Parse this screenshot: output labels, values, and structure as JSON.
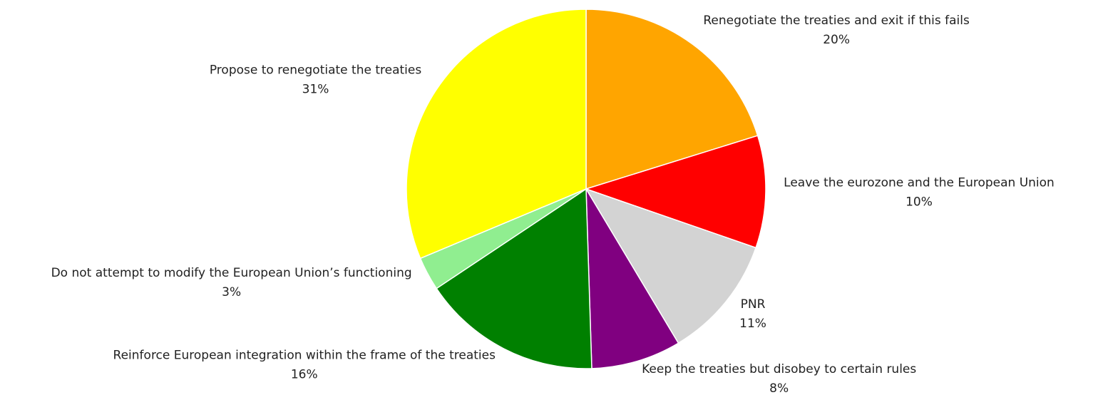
{
  "chart_data": {
    "type": "pie",
    "categories": [
      "Renegotiate the treaties and exit if this fails",
      "Leave the eurozone and the European Union",
      "PNR",
      "Keep the treaties but disobey to certain rules",
      "Reinforce European integration within the frame of the treaties",
      "Do not attempt to modify the European Union’s functioning",
      "Propose to renegotiate the treaties"
    ],
    "values": [
      20,
      10,
      11,
      8,
      16,
      3,
      31
    ],
    "value_labels": [
      "20%",
      "10%",
      "11%",
      "8%",
      "16%",
      "3%",
      "31%"
    ],
    "colors": [
      "#ffa500",
      "#ff0000",
      "#d3d3d3",
      "#800080",
      "#008000",
      "#90ee90",
      "#ffff00"
    ]
  }
}
